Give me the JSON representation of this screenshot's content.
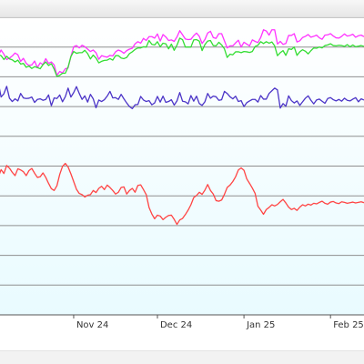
{
  "window": {
    "title": ""
  },
  "colors": {
    "background_top": "#ffffff",
    "background_bottom": "#e9fbff",
    "grid": "#8f8f8f",
    "axis": "#555555",
    "series_magenta": "#ff33ff",
    "series_green": "#33dd33",
    "series_blue": "#4b34c7",
    "series_red": "#ff4444"
  },
  "chart_data": {
    "type": "line",
    "xlabel": "",
    "ylabel": "",
    "grid": true,
    "x_ticks": [
      "Nov 24",
      "Dec 24",
      "Jan 25",
      "Feb 25"
    ],
    "x_tick_days": [
      29,
      59,
      90,
      121
    ],
    "x_range_days": [
      0,
      133
    ],
    "ylim": [
      0,
      10
    ],
    "series": [
      {
        "color": "#ff33ff",
        "values": [
          8.55,
          8.53,
          8.72,
          8.9,
          8.76,
          8.58,
          8.63,
          8.7,
          8.8,
          8.74,
          8.52,
          8.62,
          8.45,
          8.38,
          8.4,
          8.53,
          8.31,
          8.47,
          8.41,
          8.61,
          8.45,
          8.5,
          8.4,
          8.05,
          8.18,
          8.13,
          8.27,
          8.3,
          8.68,
          9.01,
          9.05,
          8.97,
          9.06,
          9.01,
          8.93,
          8.85,
          8.9,
          8.81,
          8.59,
          8.71,
          8.68,
          8.66,
          8.72,
          8.7,
          8.84,
          8.9,
          8.86,
          8.79,
          8.88,
          8.93,
          8.96,
          9.11,
          9.18,
          9.13,
          9.29,
          9.22,
          9.35,
          9.35,
          9.3,
          9.44,
          9.2,
          9.42,
          9.34,
          9.22,
          9.24,
          9.19,
          9.34,
          9.55,
          9.41,
          9.27,
          9.25,
          9.26,
          9.38,
          9.47,
          9.36,
          9.12,
          9.25,
          9.47,
          9.53,
          9.32,
          9.29,
          9.45,
          9.45,
          9.21,
          8.97,
          9.04,
          9.04,
          9.14,
          9.23,
          9.0,
          9.16,
          9.1,
          9.04,
          9.24,
          9.19,
          9.15,
          9.32,
          9.58,
          9.54,
          9.4,
          9.58,
          9.58,
          9.1,
          9.19,
          9.09,
          9.12,
          9.39,
          9.39,
          9.45,
          9.17,
          9.21,
          9.32,
          9.36,
          9.42,
          9.33,
          9.36,
          9.4,
          9.31,
          9.26,
          9.4,
          9.41,
          9.45,
          9.37,
          9.31,
          9.3,
          9.36,
          9.44,
          9.37,
          9.39,
          9.43,
          9.33,
          9.38,
          9.4,
          9.35
        ]
      },
      {
        "color": "#33dd33",
        "values": [
          8.42,
          8.51,
          8.75,
          8.71,
          8.58,
          8.69,
          8.6,
          8.57,
          8.5,
          8.56,
          8.43,
          8.45,
          8.32,
          8.36,
          8.28,
          8.34,
          8.31,
          8.27,
          8.41,
          8.5,
          8.38,
          8.44,
          8.26,
          8.01,
          8.05,
          8.12,
          8.12,
          8.33,
          8.68,
          8.85,
          8.79,
          8.81,
          8.81,
          8.89,
          8.78,
          8.6,
          8.73,
          8.63,
          8.47,
          8.52,
          8.55,
          8.56,
          8.61,
          8.56,
          8.71,
          8.71,
          8.63,
          8.61,
          8.65,
          8.78,
          8.84,
          8.92,
          8.97,
          8.97,
          9.01,
          9.0,
          9.22,
          9.09,
          9.07,
          9.18,
          9.01,
          9.13,
          9.11,
          8.94,
          9.1,
          8.89,
          9.06,
          9.3,
          9.25,
          9.0,
          9.0,
          9.0,
          9.24,
          9.25,
          9.2,
          8.88,
          9.08,
          9.2,
          9.22,
          9.05,
          9.04,
          9.16,
          9.07,
          8.94,
          8.65,
          8.76,
          8.74,
          8.84,
          8.84,
          8.81,
          8.85,
          8.84,
          8.82,
          8.85,
          9.02,
          9.06,
          9.18,
          9.12,
          9.18,
          9.13,
          9.17,
          9.04,
          8.71,
          8.81,
          8.88,
          8.72,
          8.94,
          8.92,
          9.0,
          8.72,
          8.84,
          8.91,
          8.86,
          8.77,
          8.88,
          8.97,
          8.96,
          9.0,
          8.97,
          9.05,
          9.07,
          9.11,
          9.05,
          9.04,
          9.06,
          9.05,
          9.02,
          9.08,
          9.01,
          9.07,
          9.01,
          9.03,
          9.05,
          9.02
        ]
      },
      {
        "color": "#4b34c7",
        "values": [
          7.48,
          7.63,
          7.8,
          7.32,
          7.43,
          7.68,
          7.28,
          7.17,
          7.26,
          7.19,
          7.44,
          7.29,
          7.27,
          7.28,
          7.32,
          7.14,
          7.24,
          7.26,
          7.21,
          7.24,
          7.39,
          7.03,
          7.29,
          7.27,
          7.39,
          7.16,
          7.33,
          7.62,
          7.32,
          7.47,
          7.67,
          7.44,
          7.24,
          7.36,
          7.15,
          7.41,
          7.26,
          6.96,
          7.22,
          7.17,
          7.23,
          7.35,
          7.51,
          7.29,
          7.3,
          7.24,
          7.41,
          7.26,
          7.12,
          7.0,
          6.93,
          7.06,
          7.07,
          7.34,
          7.22,
          7.17,
          7.2,
          7.06,
          7.12,
          7.34,
          7.15,
          7.35,
          7.14,
          7.17,
          7.23,
          7.05,
          7.19,
          7.47,
          7.18,
          7.16,
          7.09,
          7.37,
          7.18,
          7.35,
          7.1,
          7.04,
          7.16,
          7.44,
          7.28,
          7.35,
          7.33,
          7.21,
          7.23,
          7.51,
          7.44,
          7.33,
          7.26,
          7.35,
          7.17,
          7.2,
          7.0,
          7.13,
          7.19,
          7.24,
          7.24,
          7.15,
          7.37,
          7.25,
          7.25,
          7.44,
          7.53,
          7.62,
          7.56,
          6.95,
          7.1,
          7.01,
          7.36,
          7.2,
          7.12,
          7.19,
          7.04,
          7.16,
          7.28,
          7.36,
          7.21,
          7.09,
          7.22,
          7.25,
          7.18,
          7.11,
          7.27,
          7.3,
          7.23,
          7.19,
          7.24,
          7.18,
          7.28,
          7.21,
          7.19,
          7.25,
          7.3,
          7.16,
          7.26,
          7.22
        ]
      },
      {
        "color": "#ff4444",
        "values": [
          5.01,
          4.82,
          4.63,
          4.88,
          4.75,
          5.02,
          4.93,
          4.79,
          4.68,
          4.91,
          4.87,
          4.81,
          4.68,
          4.85,
          4.92,
          4.76,
          4.62,
          4.64,
          4.77,
          4.62,
          4.42,
          4.24,
          4.18,
          4.34,
          4.72,
          4.99,
          5.09,
          4.97,
          4.74,
          4.48,
          4.22,
          4.08,
          4.04,
          3.96,
          4.02,
          4.04,
          4.18,
          4.11,
          4.25,
          4.32,
          4.21,
          4.36,
          4.28,
          4.18,
          4.06,
          4.12,
          4.28,
          4.3,
          4.06,
          4.18,
          4.25,
          4.12,
          4.35,
          4.37,
          4.21,
          4.04,
          3.61,
          3.39,
          3.23,
          3.35,
          3.32,
          3.2,
          3.28,
          3.34,
          3.35,
          3.21,
          3.04,
          3.19,
          3.24,
          3.37,
          3.52,
          3.7,
          3.94,
          4.01,
          4.12,
          4.05,
          4.19,
          4.38,
          4.18,
          4.06,
          3.84,
          3.82,
          3.86,
          4.05,
          4.28,
          4.36,
          4.48,
          4.64,
          4.87,
          4.94,
          4.86,
          4.57,
          4.42,
          4.26,
          4.08,
          3.65,
          3.52,
          3.38,
          3.54,
          3.61,
          3.7,
          3.66,
          3.71,
          3.8,
          3.88,
          3.76,
          3.62,
          3.54,
          3.58,
          3.51,
          3.62,
          3.7,
          3.66,
          3.72,
          3.69,
          3.75,
          3.73,
          3.78,
          3.82,
          3.75,
          3.72,
          3.79,
          3.81,
          3.76,
          3.74,
          3.8,
          3.78,
          3.75,
          3.77,
          3.79,
          3.76,
          3.78,
          3.8,
          3.77
        ]
      }
    ]
  }
}
